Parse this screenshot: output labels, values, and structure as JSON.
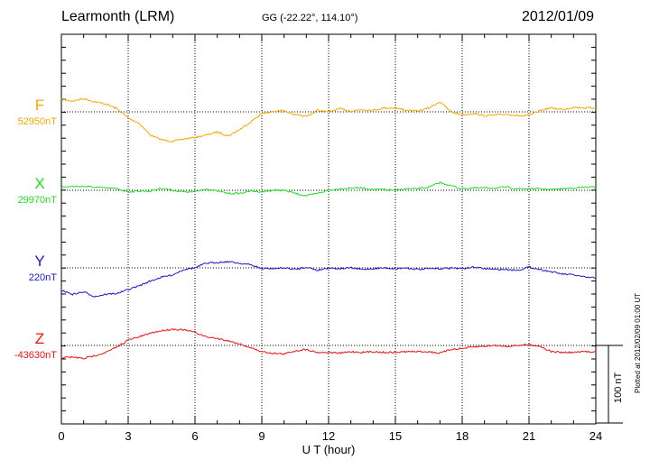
{
  "header": {
    "station": "Learmonth (LRM)",
    "coords": "GG (-22.22°, 114.10°)",
    "date": "2012/01/09"
  },
  "footer": "Plotted at 2012/02/09 01:00 UT",
  "scale_label": "100 nT",
  "chart_data": {
    "type": "line",
    "xlabel": "U T (hour)",
    "xlim": [
      0,
      24
    ],
    "xticks": [
      0,
      3,
      6,
      9,
      12,
      15,
      18,
      21,
      24
    ],
    "nT_scale": 100,
    "grid": true,
    "series": [
      {
        "name": "F",
        "baseline_label": "52950nT",
        "color": "#f5a800",
        "baseline_nT": 52950,
        "x": [
          0,
          0.5,
          1,
          1.5,
          2,
          2.5,
          3,
          3.5,
          4,
          4.5,
          5,
          5.5,
          6,
          6.5,
          7,
          7.5,
          8,
          8.5,
          9,
          9.5,
          10,
          10.5,
          11,
          11.5,
          12,
          12.5,
          13,
          13.5,
          14,
          14.5,
          15,
          15.5,
          16,
          16.5,
          17,
          17.5,
          18,
          18.5,
          19,
          19.5,
          20,
          20.5,
          21,
          21.5,
          22,
          22.5,
          23,
          23.5,
          24
        ],
        "y": [
          52966,
          52964,
          52967,
          52963,
          52960,
          52954,
          52942,
          52935,
          52920,
          52914,
          52912,
          52915,
          52917,
          52920,
          52924,
          52919,
          52927,
          52937,
          52948,
          52950,
          52952,
          52946,
          52944,
          52952,
          52950,
          52954,
          52951,
          52953,
          52952,
          52955,
          52955,
          52952,
          52951,
          52955,
          52963,
          52950,
          52946,
          52948,
          52945,
          52946,
          52947,
          52945,
          52945,
          52952,
          52955,
          52953,
          52956,
          52955,
          52955
        ]
      },
      {
        "name": "X",
        "baseline_label": "29970nT",
        "color": "#22dd22",
        "baseline_nT": 29970,
        "x": [
          0,
          0.5,
          1,
          1.5,
          2,
          2.5,
          3,
          3.5,
          4,
          4.5,
          5,
          5.5,
          6,
          6.5,
          7,
          7.5,
          8,
          8.5,
          9,
          9.5,
          10,
          10.5,
          11,
          11.5,
          12,
          12.5,
          13,
          13.5,
          14,
          14.5,
          15,
          15.5,
          16,
          16.5,
          17,
          17.5,
          18,
          18.5,
          19,
          19.5,
          20,
          20.5,
          21,
          21.5,
          22,
          22.5,
          23,
          23.5,
          24
        ],
        "y": [
          29974,
          29975,
          29975,
          29974,
          29973,
          29972,
          29968,
          29969,
          29969,
          29973,
          29970,
          29968,
          29968,
          29972,
          29969,
          29966,
          29966,
          29969,
          29968,
          29970,
          29970,
          29966,
          29963,
          29966,
          29970,
          29972,
          29973,
          29973,
          29971,
          29971,
          29970,
          29972,
          29972,
          29974,
          29980,
          29976,
          29972,
          29973,
          29973,
          29973,
          29974,
          29972,
          29972,
          29972,
          29971,
          29972,
          29973,
          29974,
          29974
        ]
      },
      {
        "name": "Y",
        "baseline_label": "220nT",
        "color": "#1a1acc",
        "baseline_nT": 220,
        "x": [
          0,
          0.5,
          1,
          1.5,
          2,
          2.5,
          3,
          3.5,
          4,
          4.5,
          5,
          5.5,
          6,
          6.5,
          7,
          7.5,
          8,
          8.5,
          9,
          9.5,
          10,
          10.5,
          11,
          11.5,
          12,
          12.5,
          13,
          13.5,
          14,
          14.5,
          15,
          15.5,
          16,
          16.5,
          17,
          17.5,
          18,
          18.5,
          19,
          19.5,
          20,
          20.5,
          21,
          21.5,
          22,
          22.5,
          23,
          23.5,
          24
        ],
        "y": [
          191,
          186,
          189,
          183,
          186,
          187,
          192,
          197,
          203,
          208,
          211,
          218,
          220,
          226,
          227,
          228,
          226,
          224,
          219,
          219,
          220,
          218,
          221,
          217,
          220,
          219,
          220,
          218,
          219,
          220,
          219,
          220,
          218,
          219,
          219,
          220,
          219,
          221,
          219,
          218,
          218,
          217,
          221,
          218,
          215,
          212,
          211,
          208,
          207
        ]
      },
      {
        "name": "Z",
        "baseline_label": "-43630nT",
        "color": "#ee1111",
        "baseline_nT": -43630,
        "x": [
          0,
          0.5,
          1,
          1.5,
          2,
          2.5,
          3,
          3.5,
          4,
          4.5,
          5,
          5.5,
          6,
          6.5,
          7,
          7.5,
          8,
          8.5,
          9,
          9.5,
          10,
          10.5,
          11,
          11.5,
          12,
          12.5,
          13,
          13.5,
          14,
          14.5,
          15,
          15.5,
          16,
          16.5,
          17,
          17.5,
          18,
          18.5,
          19,
          19.5,
          20,
          20.5,
          21,
          21.5,
          22,
          22.5,
          23,
          23.5,
          24
        ],
        "y": [
          -43646,
          -43645,
          -43647,
          -43643,
          -43639,
          -43632,
          -43623,
          -43619,
          -43614,
          -43611,
          -43609,
          -43610,
          -43613,
          -43619,
          -43621,
          -43624,
          -43628,
          -43633,
          -43638,
          -43640,
          -43641,
          -43637,
          -43635,
          -43639,
          -43639,
          -43640,
          -43638,
          -43639,
          -43638,
          -43639,
          -43639,
          -43638,
          -43638,
          -43638,
          -43640,
          -43635,
          -43634,
          -43632,
          -43631,
          -43630,
          -43631,
          -43630,
          -43629,
          -43631,
          -43638,
          -43639,
          -43639,
          -43638,
          -43638
        ]
      }
    ]
  }
}
